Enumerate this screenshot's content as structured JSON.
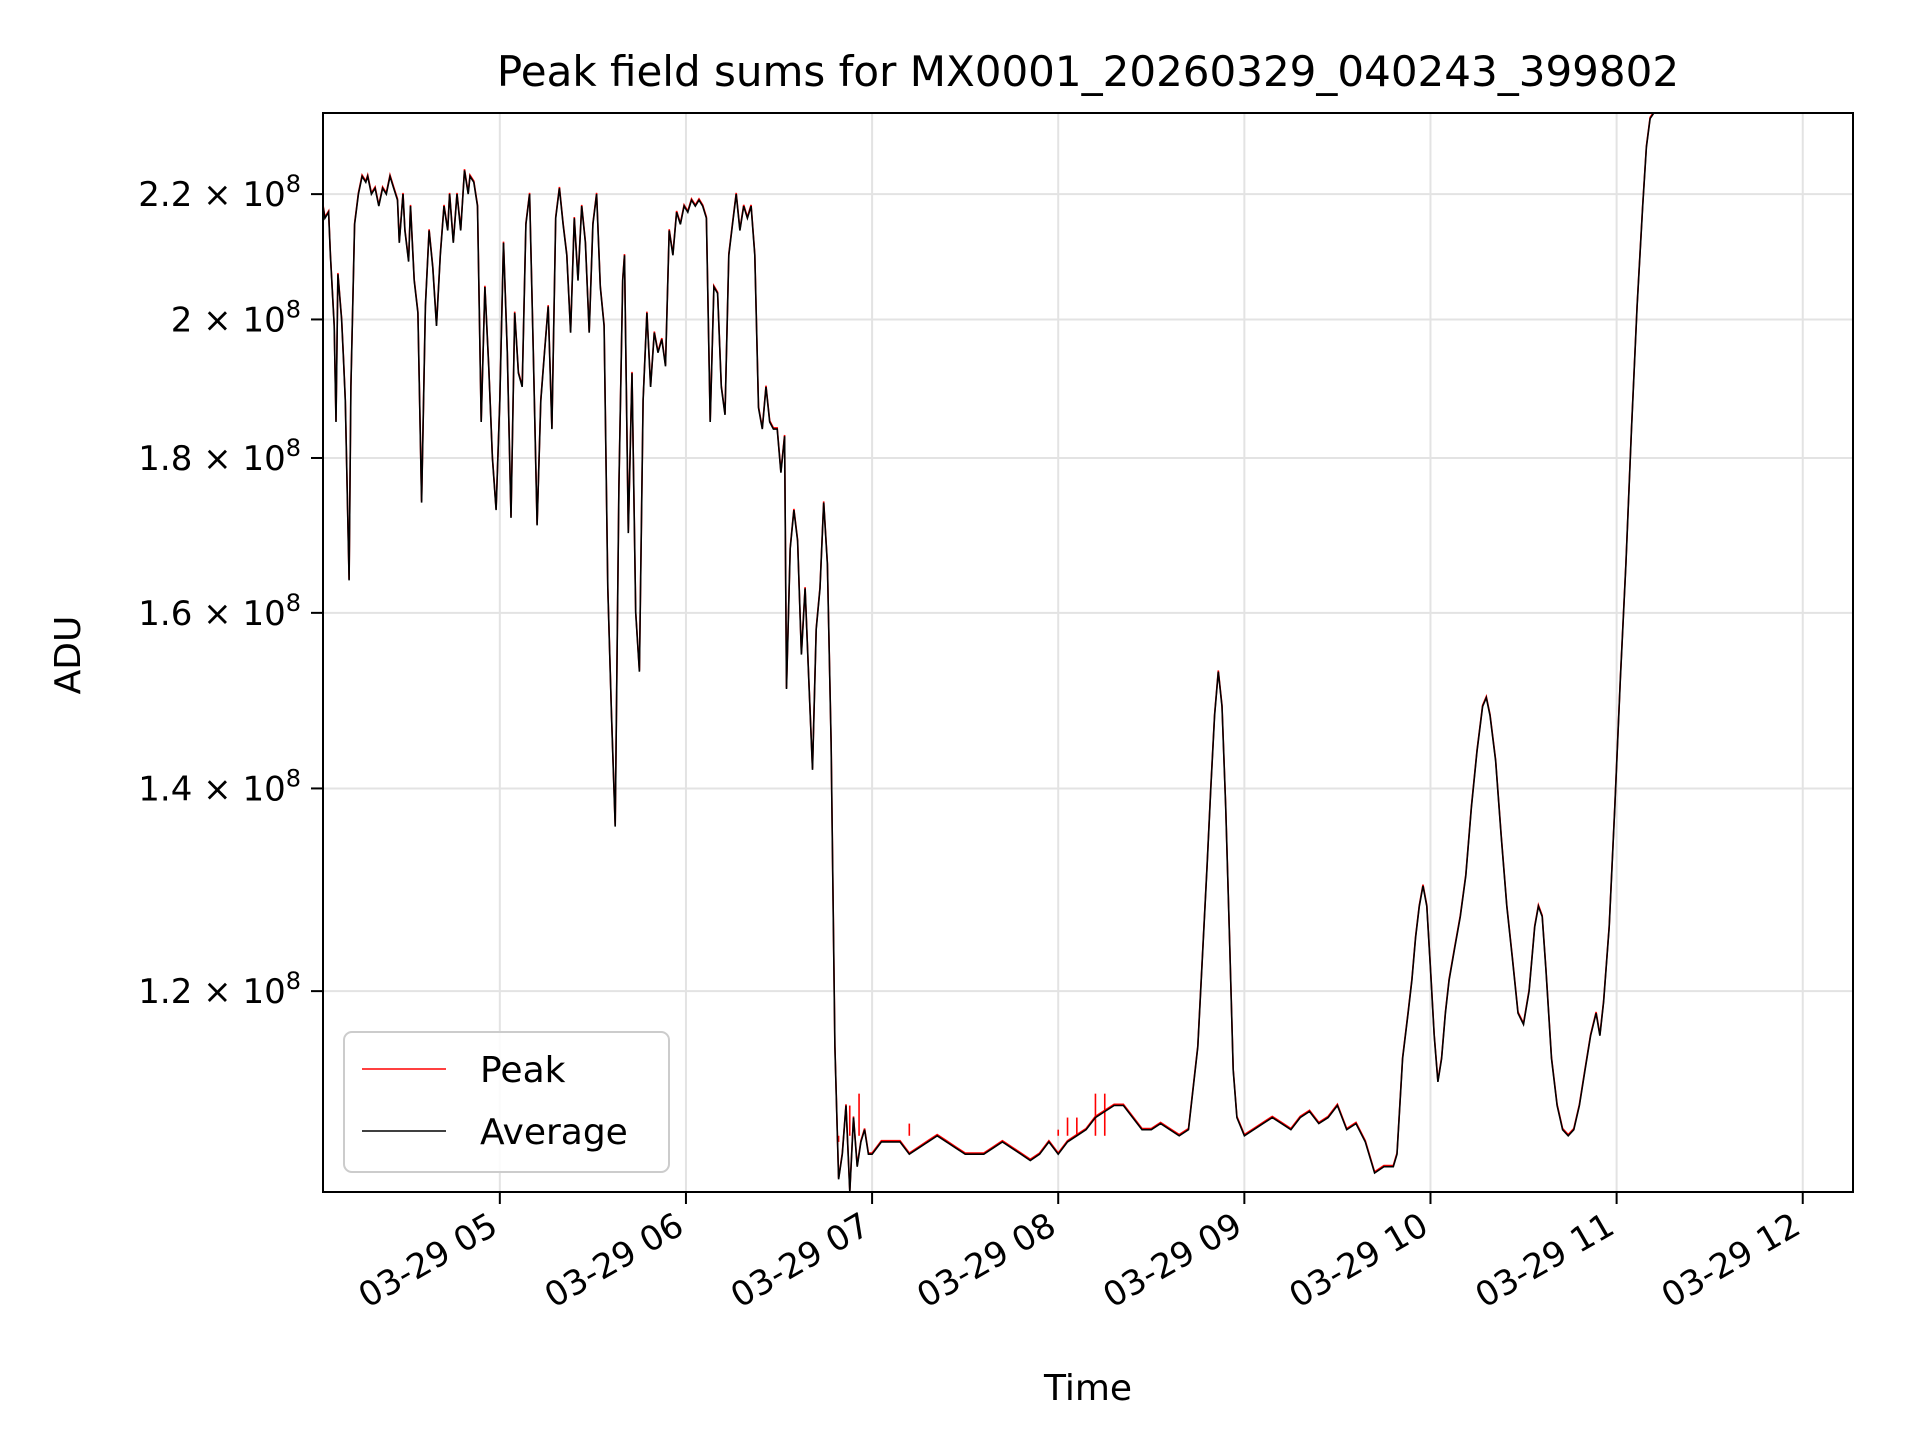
{
  "chart_data": {
    "type": "line",
    "title": "Peak field sums for MX0001_20260329_040243_399802",
    "xlabel": "Time",
    "ylabel": "ADU",
    "yscale": "log",
    "grid": true,
    "legend_position": "lower-left",
    "x_unit": "hours since 03-29 00:00",
    "xlim": [
      4.05,
      12.27
    ],
    "ylim": [
      103000000.0,
      234000000.0
    ],
    "x_ticks": [
      {
        "value": 5,
        "label": "03-29 05"
      },
      {
        "value": 6,
        "label": "03-29 06"
      },
      {
        "value": 7,
        "label": "03-29 07"
      },
      {
        "value": 8,
        "label": "03-29 08"
      },
      {
        "value": 9,
        "label": "03-29 09"
      },
      {
        "value": 10,
        "label": "03-29 10"
      },
      {
        "value": 11,
        "label": "03-29 11"
      },
      {
        "value": 12,
        "label": "03-29 12"
      }
    ],
    "y_ticks": [
      {
        "value": 120000000.0,
        "mantissa": "1.2",
        "exponent": "8"
      },
      {
        "value": 140000000.0,
        "mantissa": "1.4",
        "exponent": "8"
      },
      {
        "value": 160000000.0,
        "mantissa": "1.6",
        "exponent": "8"
      },
      {
        "value": 180000000.0,
        "mantissa": "1.8",
        "exponent": "8"
      },
      {
        "value": 200000000.0,
        "mantissa": "2",
        "exponent": "8"
      },
      {
        "value": 220000000.0,
        "mantissa": "2.2",
        "exponent": "8"
      }
    ],
    "times_label": "x,y pairs: x in hours, y in 1e8 ADU",
    "average": [
      [
        4.05,
        2.18
      ],
      [
        4.06,
        2.16
      ],
      [
        4.08,
        2.17
      ],
      [
        4.09,
        2.1
      ],
      [
        4.11,
        1.99
      ],
      [
        4.12,
        1.85
      ],
      [
        4.13,
        2.07
      ],
      [
        4.15,
        2.0
      ],
      [
        4.16,
        1.94
      ],
      [
        4.17,
        1.88
      ],
      [
        4.19,
        1.64
      ],
      [
        4.2,
        1.9
      ],
      [
        4.22,
        2.15
      ],
      [
        4.24,
        2.2
      ],
      [
        4.26,
        2.23
      ],
      [
        4.28,
        2.22
      ],
      [
        4.29,
        2.23
      ],
      [
        4.31,
        2.2
      ],
      [
        4.33,
        2.21
      ],
      [
        4.35,
        2.18
      ],
      [
        4.37,
        2.21
      ],
      [
        4.39,
        2.2
      ],
      [
        4.41,
        2.23
      ],
      [
        4.43,
        2.21
      ],
      [
        4.45,
        2.19
      ],
      [
        4.46,
        2.12
      ],
      [
        4.48,
        2.2
      ],
      [
        4.49,
        2.14
      ],
      [
        4.51,
        2.09
      ],
      [
        4.52,
        2.18
      ],
      [
        4.54,
        2.06
      ],
      [
        4.56,
        2.01
      ],
      [
        4.58,
        1.74
      ],
      [
        4.6,
        2.02
      ],
      [
        4.62,
        2.14
      ],
      [
        4.64,
        2.08
      ],
      [
        4.66,
        1.99
      ],
      [
        4.68,
        2.1
      ],
      [
        4.7,
        2.18
      ],
      [
        4.72,
        2.14
      ],
      [
        4.73,
        2.2
      ],
      [
        4.75,
        2.12
      ],
      [
        4.77,
        2.2
      ],
      [
        4.79,
        2.14
      ],
      [
        4.81,
        2.24
      ],
      [
        4.83,
        2.2
      ],
      [
        4.84,
        2.23
      ],
      [
        4.86,
        2.22
      ],
      [
        4.88,
        2.18
      ],
      [
        4.9,
        1.85
      ],
      [
        4.92,
        2.05
      ],
      [
        4.94,
        1.93
      ],
      [
        4.96,
        1.8
      ],
      [
        4.98,
        1.73
      ],
      [
        5.0,
        1.88
      ],
      [
        5.02,
        2.12
      ],
      [
        5.04,
        1.95
      ],
      [
        5.06,
        1.72
      ],
      [
        5.08,
        2.01
      ],
      [
        5.1,
        1.92
      ],
      [
        5.12,
        1.9
      ],
      [
        5.14,
        2.15
      ],
      [
        5.16,
        2.2
      ],
      [
        5.18,
        1.95
      ],
      [
        5.2,
        1.71
      ],
      [
        5.22,
        1.88
      ],
      [
        5.24,
        1.95
      ],
      [
        5.26,
        2.02
      ],
      [
        5.28,
        1.84
      ],
      [
        5.3,
        2.16
      ],
      [
        5.32,
        2.21
      ],
      [
        5.34,
        2.15
      ],
      [
        5.36,
        2.1
      ],
      [
        5.38,
        1.98
      ],
      [
        5.4,
        2.16
      ],
      [
        5.42,
        2.06
      ],
      [
        5.44,
        2.18
      ],
      [
        5.46,
        2.12
      ],
      [
        5.48,
        1.98
      ],
      [
        5.5,
        2.15
      ],
      [
        5.52,
        2.2
      ],
      [
        5.54,
        2.05
      ],
      [
        5.56,
        1.99
      ],
      [
        5.58,
        1.63
      ],
      [
        5.6,
        1.48
      ],
      [
        5.62,
        1.36
      ],
      [
        5.64,
        1.76
      ],
      [
        5.66,
        2.06
      ],
      [
        5.67,
        2.1
      ],
      [
        5.69,
        1.7
      ],
      [
        5.71,
        1.92
      ],
      [
        5.73,
        1.6
      ],
      [
        5.75,
        1.53
      ],
      [
        5.77,
        1.88
      ],
      [
        5.79,
        2.01
      ],
      [
        5.81,
        1.9
      ],
      [
        5.83,
        1.98
      ],
      [
        5.85,
        1.95
      ],
      [
        5.87,
        1.97
      ],
      [
        5.89,
        1.93
      ],
      [
        5.91,
        2.14
      ],
      [
        5.93,
        2.1
      ],
      [
        5.95,
        2.17
      ],
      [
        5.97,
        2.15
      ],
      [
        5.99,
        2.18
      ],
      [
        6.01,
        2.17
      ],
      [
        6.03,
        2.19
      ],
      [
        6.05,
        2.18
      ],
      [
        6.07,
        2.19
      ],
      [
        6.09,
        2.18
      ],
      [
        6.11,
        2.16
      ],
      [
        6.13,
        1.85
      ],
      [
        6.15,
        2.05
      ],
      [
        6.17,
        2.04
      ],
      [
        6.19,
        1.9
      ],
      [
        6.21,
        1.86
      ],
      [
        6.23,
        2.1
      ],
      [
        6.25,
        2.15
      ],
      [
        6.27,
        2.2
      ],
      [
        6.29,
        2.14
      ],
      [
        6.31,
        2.18
      ],
      [
        6.33,
        2.16
      ],
      [
        6.35,
        2.18
      ],
      [
        6.37,
        2.1
      ],
      [
        6.39,
        1.87
      ],
      [
        6.41,
        1.84
      ],
      [
        6.43,
        1.9
      ],
      [
        6.45,
        1.85
      ],
      [
        6.47,
        1.84
      ],
      [
        6.49,
        1.84
      ],
      [
        6.51,
        1.78
      ],
      [
        6.53,
        1.83
      ],
      [
        6.54,
        1.51
      ],
      [
        6.56,
        1.68
      ],
      [
        6.58,
        1.73
      ],
      [
        6.6,
        1.69
      ],
      [
        6.62,
        1.55
      ],
      [
        6.64,
        1.63
      ],
      [
        6.66,
        1.52
      ],
      [
        6.68,
        1.42
      ],
      [
        6.7,
        1.58
      ],
      [
        6.72,
        1.63
      ],
      [
        6.74,
        1.74
      ],
      [
        6.76,
        1.66
      ],
      [
        6.78,
        1.45
      ],
      [
        6.8,
        1.15
      ],
      [
        6.82,
        1.04
      ],
      [
        6.84,
        1.06
      ],
      [
        6.86,
        1.1
      ],
      [
        6.88,
        1.03
      ],
      [
        6.9,
        1.09
      ],
      [
        6.92,
        1.05
      ],
      [
        6.94,
        1.07
      ],
      [
        6.96,
        1.08
      ],
      [
        6.98,
        1.06
      ],
      [
        7.0,
        1.06
      ],
      [
        7.05,
        1.07
      ],
      [
        7.1,
        1.07
      ],
      [
        7.15,
        1.07
      ],
      [
        7.2,
        1.06
      ],
      [
        7.25,
        1.065
      ],
      [
        7.3,
        1.07
      ],
      [
        7.35,
        1.075
      ],
      [
        7.4,
        1.07
      ],
      [
        7.45,
        1.065
      ],
      [
        7.5,
        1.06
      ],
      [
        7.55,
        1.06
      ],
      [
        7.6,
        1.06
      ],
      [
        7.65,
        1.065
      ],
      [
        7.7,
        1.07
      ],
      [
        7.75,
        1.065
      ],
      [
        7.8,
        1.06
      ],
      [
        7.85,
        1.055
      ],
      [
        7.9,
        1.06
      ],
      [
        7.95,
        1.07
      ],
      [
        8.0,
        1.06
      ],
      [
        8.05,
        1.07
      ],
      [
        8.1,
        1.075
      ],
      [
        8.15,
        1.08
      ],
      [
        8.2,
        1.09
      ],
      [
        8.25,
        1.095
      ],
      [
        8.3,
        1.1
      ],
      [
        8.35,
        1.1
      ],
      [
        8.4,
        1.09
      ],
      [
        8.45,
        1.08
      ],
      [
        8.5,
        1.08
      ],
      [
        8.55,
        1.085
      ],
      [
        8.6,
        1.08
      ],
      [
        8.65,
        1.075
      ],
      [
        8.7,
        1.08
      ],
      [
        8.75,
        1.15
      ],
      [
        8.8,
        1.32
      ],
      [
        8.82,
        1.4
      ],
      [
        8.84,
        1.48
      ],
      [
        8.86,
        1.53
      ],
      [
        8.88,
        1.49
      ],
      [
        8.9,
        1.38
      ],
      [
        8.92,
        1.25
      ],
      [
        8.94,
        1.13
      ],
      [
        8.96,
        1.09
      ],
      [
        9.0,
        1.075
      ],
      [
        9.05,
        1.08
      ],
      [
        9.1,
        1.085
      ],
      [
        9.15,
        1.09
      ],
      [
        9.2,
        1.085
      ],
      [
        9.25,
        1.08
      ],
      [
        9.3,
        1.09
      ],
      [
        9.35,
        1.095
      ],
      [
        9.4,
        1.085
      ],
      [
        9.45,
        1.09
      ],
      [
        9.5,
        1.1
      ],
      [
        9.55,
        1.08
      ],
      [
        9.6,
        1.085
      ],
      [
        9.65,
        1.07
      ],
      [
        9.7,
        1.045
      ],
      [
        9.75,
        1.05
      ],
      [
        9.8,
        1.05
      ],
      [
        9.82,
        1.06
      ],
      [
        9.85,
        1.14
      ],
      [
        9.88,
        1.18
      ],
      [
        9.9,
        1.21
      ],
      [
        9.92,
        1.25
      ],
      [
        9.94,
        1.28
      ],
      [
        9.96,
        1.3
      ],
      [
        9.98,
        1.28
      ],
      [
        10.0,
        1.22
      ],
      [
        10.02,
        1.16
      ],
      [
        10.04,
        1.12
      ],
      [
        10.06,
        1.14
      ],
      [
        10.08,
        1.18
      ],
      [
        10.1,
        1.21
      ],
      [
        10.13,
        1.24
      ],
      [
        10.16,
        1.27
      ],
      [
        10.19,
        1.31
      ],
      [
        10.22,
        1.38
      ],
      [
        10.25,
        1.44
      ],
      [
        10.28,
        1.49
      ],
      [
        10.3,
        1.5
      ],
      [
        10.32,
        1.48
      ],
      [
        10.35,
        1.43
      ],
      [
        10.38,
        1.35
      ],
      [
        10.41,
        1.28
      ],
      [
        10.44,
        1.23
      ],
      [
        10.47,
        1.18
      ],
      [
        10.5,
        1.17
      ],
      [
        10.53,
        1.2
      ],
      [
        10.56,
        1.26
      ],
      [
        10.58,
        1.28
      ],
      [
        10.6,
        1.27
      ],
      [
        10.62,
        1.22
      ],
      [
        10.65,
        1.14
      ],
      [
        10.68,
        1.1
      ],
      [
        10.71,
        1.08
      ],
      [
        10.74,
        1.075
      ],
      [
        10.77,
        1.08
      ],
      [
        10.8,
        1.1
      ],
      [
        10.83,
        1.13
      ],
      [
        10.86,
        1.16
      ],
      [
        10.89,
        1.18
      ],
      [
        10.91,
        1.16
      ],
      [
        10.93,
        1.19
      ],
      [
        10.96,
        1.26
      ],
      [
        10.99,
        1.38
      ],
      [
        11.02,
        1.52
      ],
      [
        11.05,
        1.66
      ],
      [
        11.08,
        1.84
      ],
      [
        11.11,
        2.02
      ],
      [
        11.14,
        2.18
      ],
      [
        11.16,
        2.28
      ],
      [
        11.18,
        2.33
      ],
      [
        11.2,
        2.34
      ]
    ],
    "peak_spikes": [
      [
        6.82,
        1.07
      ],
      [
        6.88,
        1.1
      ],
      [
        6.93,
        1.11
      ],
      [
        7.2,
        1.085
      ],
      [
        8.0,
        1.08
      ],
      [
        8.05,
        1.09
      ],
      [
        8.1,
        1.09
      ],
      [
        8.2,
        1.11
      ],
      [
        8.25,
        1.11
      ]
    ],
    "legend": [
      {
        "label": "Peak",
        "color": "#ff0000"
      },
      {
        "label": "Average",
        "color": "#000000"
      }
    ]
  }
}
